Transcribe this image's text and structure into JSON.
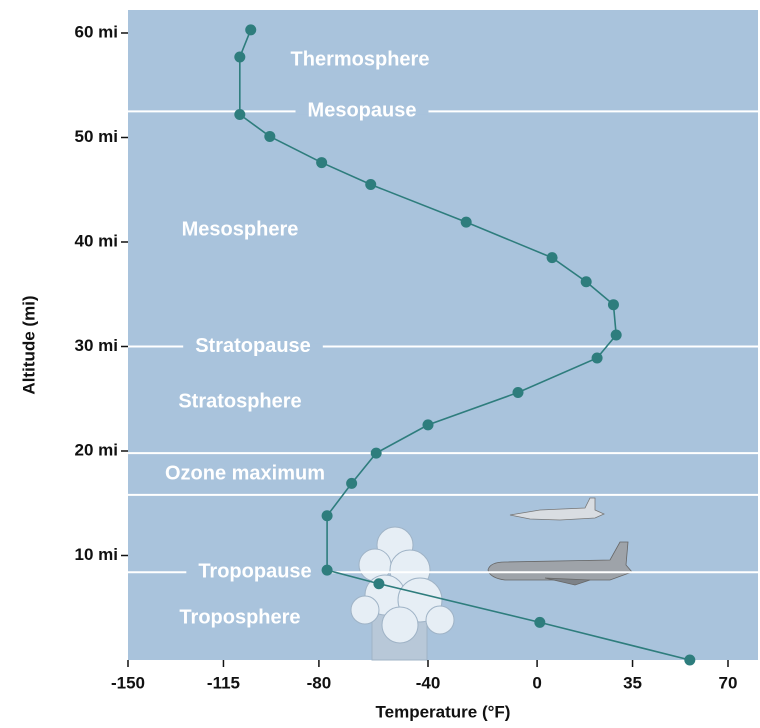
{
  "chart_data": {
    "type": "line",
    "x_label": "Temperature (°F)",
    "y_label": "Altitude (mi)",
    "xlim": [
      -150,
      81
    ],
    "xticks": [
      -150,
      -115,
      -80,
      -40,
      0,
      35,
      70
    ],
    "ylim": [
      0,
      62.2
    ],
    "yticks": [
      {
        "value": 10,
        "label": "10 mi"
      },
      {
        "value": 20,
        "label": "20 mi"
      },
      {
        "value": 30,
        "label": "30 mi"
      },
      {
        "value": 40,
        "label": "40 mi"
      },
      {
        "value": 50,
        "label": "50 mi"
      },
      {
        "value": 60,
        "label": "60 mi"
      }
    ],
    "series": [
      {
        "color": "#2e7d7d",
        "x": [
          -105,
          -109,
          -109,
          -98,
          -79,
          -61,
          -26,
          5.5,
          18,
          28,
          29,
          22,
          -7,
          -40,
          -59,
          -68,
          -77,
          -77,
          -58,
          1,
          56
        ],
        "values": [
          60.3,
          57.7,
          52.2,
          50.1,
          47.6,
          45.5,
          41.9,
          38.5,
          36.2,
          34,
          31.1,
          28.9,
          25.6,
          22.5,
          19.8,
          16.9,
          13.8,
          8.6,
          7.3,
          3.6,
          0
        ]
      }
    ],
    "boundaries": [
      {
        "label": "Mesopause",
        "value": 52.5
      },
      {
        "label": "Stratopause",
        "value": 30
      },
      {
        "label": "Tropopause",
        "value": 8.4
      }
    ],
    "ozone_band": {
      "label": "Ozone maximum",
      "range": [
        15.8,
        19.8
      ]
    },
    "layers": [
      "Thermosphere",
      "Mesosphere",
      "Stratosphere",
      "Troposphere"
    ]
  }
}
